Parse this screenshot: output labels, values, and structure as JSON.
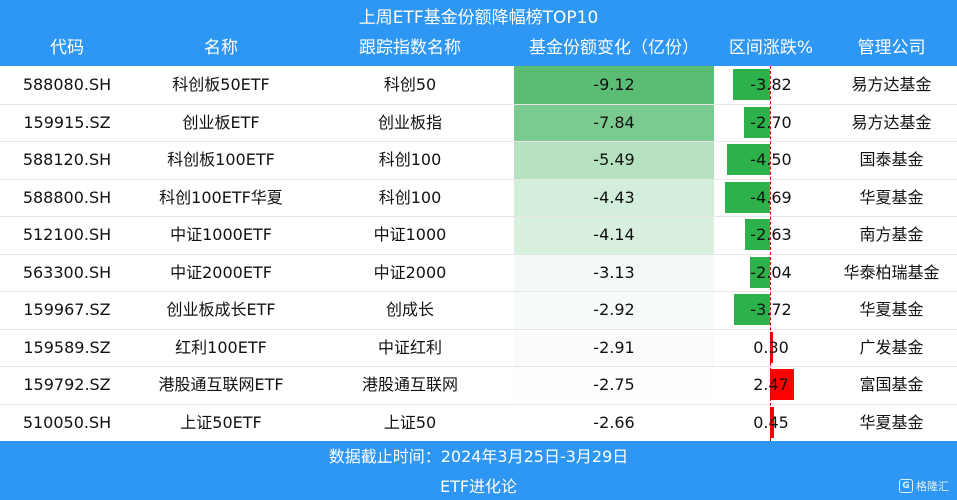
{
  "title": "上周ETF基金份额降幅榜TOP10",
  "headers": [
    "代码",
    "名称",
    "跟踪指数名称",
    "基金份额变化（亿份）",
    "区间涨跌%",
    "管理公司"
  ],
  "footer": {
    "date_range": "数据截止时间：2024年3月25日-3月29日",
    "source": "ETF进化论"
  },
  "logo": {
    "glyph": "G",
    "text": "格隆汇"
  },
  "colors": {
    "header_bg": "#2e96f3",
    "heat_strong": "#5bbd74",
    "heat_weak": "#ffffff",
    "bar_negative": "#2db24b",
    "bar_positive": "#ff0000"
  },
  "chart_data": {
    "type": "table",
    "title": "上周ETF基金份额降幅榜TOP10",
    "columns": [
      "代码",
      "名称",
      "跟踪指数名称",
      "基金份额变化（亿份）",
      "区间涨跌%",
      "管理公司"
    ],
    "rows": [
      {
        "code": "588080.SH",
        "name": "科创板50ETF",
        "index": "科创50",
        "share_change": "-9.12",
        "pct_change": "-3.82",
        "manager": "易方达基金"
      },
      {
        "code": "159915.SZ",
        "name": "创业板ETF",
        "index": "创业板指",
        "share_change": "-7.84",
        "pct_change": "-2.70",
        "manager": "易方达基金"
      },
      {
        "code": "588120.SH",
        "name": "科创板100ETF",
        "index": "科创100",
        "share_change": "-5.49",
        "pct_change": "-4.50",
        "manager": "国泰基金"
      },
      {
        "code": "588800.SH",
        "name": "科创100ETF华夏",
        "index": "科创100",
        "share_change": "-4.43",
        "pct_change": "-4.69",
        "manager": "华夏基金"
      },
      {
        "code": "512100.SH",
        "name": "中证1000ETF",
        "index": "中证1000",
        "share_change": "-4.14",
        "pct_change": "-2.63",
        "manager": "南方基金"
      },
      {
        "code": "563300.SH",
        "name": "中证2000ETF",
        "index": "中证2000",
        "share_change": "-3.13",
        "pct_change": "-2.04",
        "manager": "华泰柏瑞基金"
      },
      {
        "code": "159967.SZ",
        "name": "创业板成长ETF",
        "index": "创成长",
        "share_change": "-2.92",
        "pct_change": "-3.72",
        "manager": "华夏基金"
      },
      {
        "code": "159589.SZ",
        "name": "红利100ETF",
        "index": "中证红利",
        "share_change": "-2.91",
        "pct_change": "0.30",
        "manager": "广发基金"
      },
      {
        "code": "159792.SZ",
        "name": "港股通互联网ETF",
        "index": "港股通互联网",
        "share_change": "-2.75",
        "pct_change": "2.47",
        "manager": "富国基金"
      },
      {
        "code": "510050.SH",
        "name": "上证50ETF",
        "index": "上证50",
        "share_change": "-2.66",
        "pct_change": "0.45",
        "manager": "华夏基金"
      }
    ],
    "bar_scale_max_abs": 4.69
  }
}
